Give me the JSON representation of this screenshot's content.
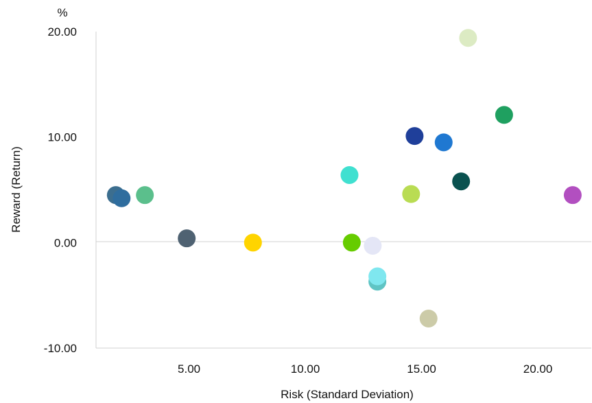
{
  "chart_data": {
    "type": "scatter",
    "unit_label": "%",
    "xlabel": "Risk (Standard Deviation)",
    "ylabel": "Reward (Return)",
    "xlim": [
      1.0,
      22.3
    ],
    "ylim": [
      -10.0,
      20.0
    ],
    "x_ticks": [
      "5.00",
      "10.00",
      "15.00",
      "20.00"
    ],
    "x_tick_values": [
      5,
      10,
      15,
      20
    ],
    "y_ticks": [
      "20.00",
      "10.00",
      "0.00",
      "-10.00"
    ],
    "y_tick_values": [
      20,
      10,
      0,
      -10
    ],
    "grid": false,
    "points": [
      {
        "x": 1.85,
        "y": 4.5,
        "color": "#3c6e8f"
      },
      {
        "x": 2.1,
        "y": 4.2,
        "color": "#2f6d9e"
      },
      {
        "x": 3.1,
        "y": 4.5,
        "color": "#5bbf8c"
      },
      {
        "x": 4.9,
        "y": 0.4,
        "color": "#4f6272"
      },
      {
        "x": 7.75,
        "y": 0.0,
        "color": "#ffd400"
      },
      {
        "x": 11.9,
        "y": 6.4,
        "color": "#40e0d0"
      },
      {
        "x": 12.0,
        "y": 0.0,
        "color": "#66cc00"
      },
      {
        "x": 12.9,
        "y": -0.3,
        "color": "#e4e6f6"
      },
      {
        "x": 13.1,
        "y": -3.7,
        "color": "#5fc4c4"
      },
      {
        "x": 13.1,
        "y": -3.2,
        "color": "#7fe7ef"
      },
      {
        "x": 14.55,
        "y": 4.6,
        "color": "#b9dc53"
      },
      {
        "x": 14.7,
        "y": 10.1,
        "color": "#1f3f9a"
      },
      {
        "x": 15.3,
        "y": -7.2,
        "color": "#cccba8"
      },
      {
        "x": 15.95,
        "y": 9.5,
        "color": "#1f78d1"
      },
      {
        "x": 16.7,
        "y": 5.8,
        "color": "#0a5250"
      },
      {
        "x": 17.0,
        "y": 19.4,
        "color": "#dcebc3"
      },
      {
        "x": 18.55,
        "y": 12.1,
        "color": "#1fa060"
      },
      {
        "x": 21.5,
        "y": 4.5,
        "color": "#b24fc0"
      }
    ]
  }
}
